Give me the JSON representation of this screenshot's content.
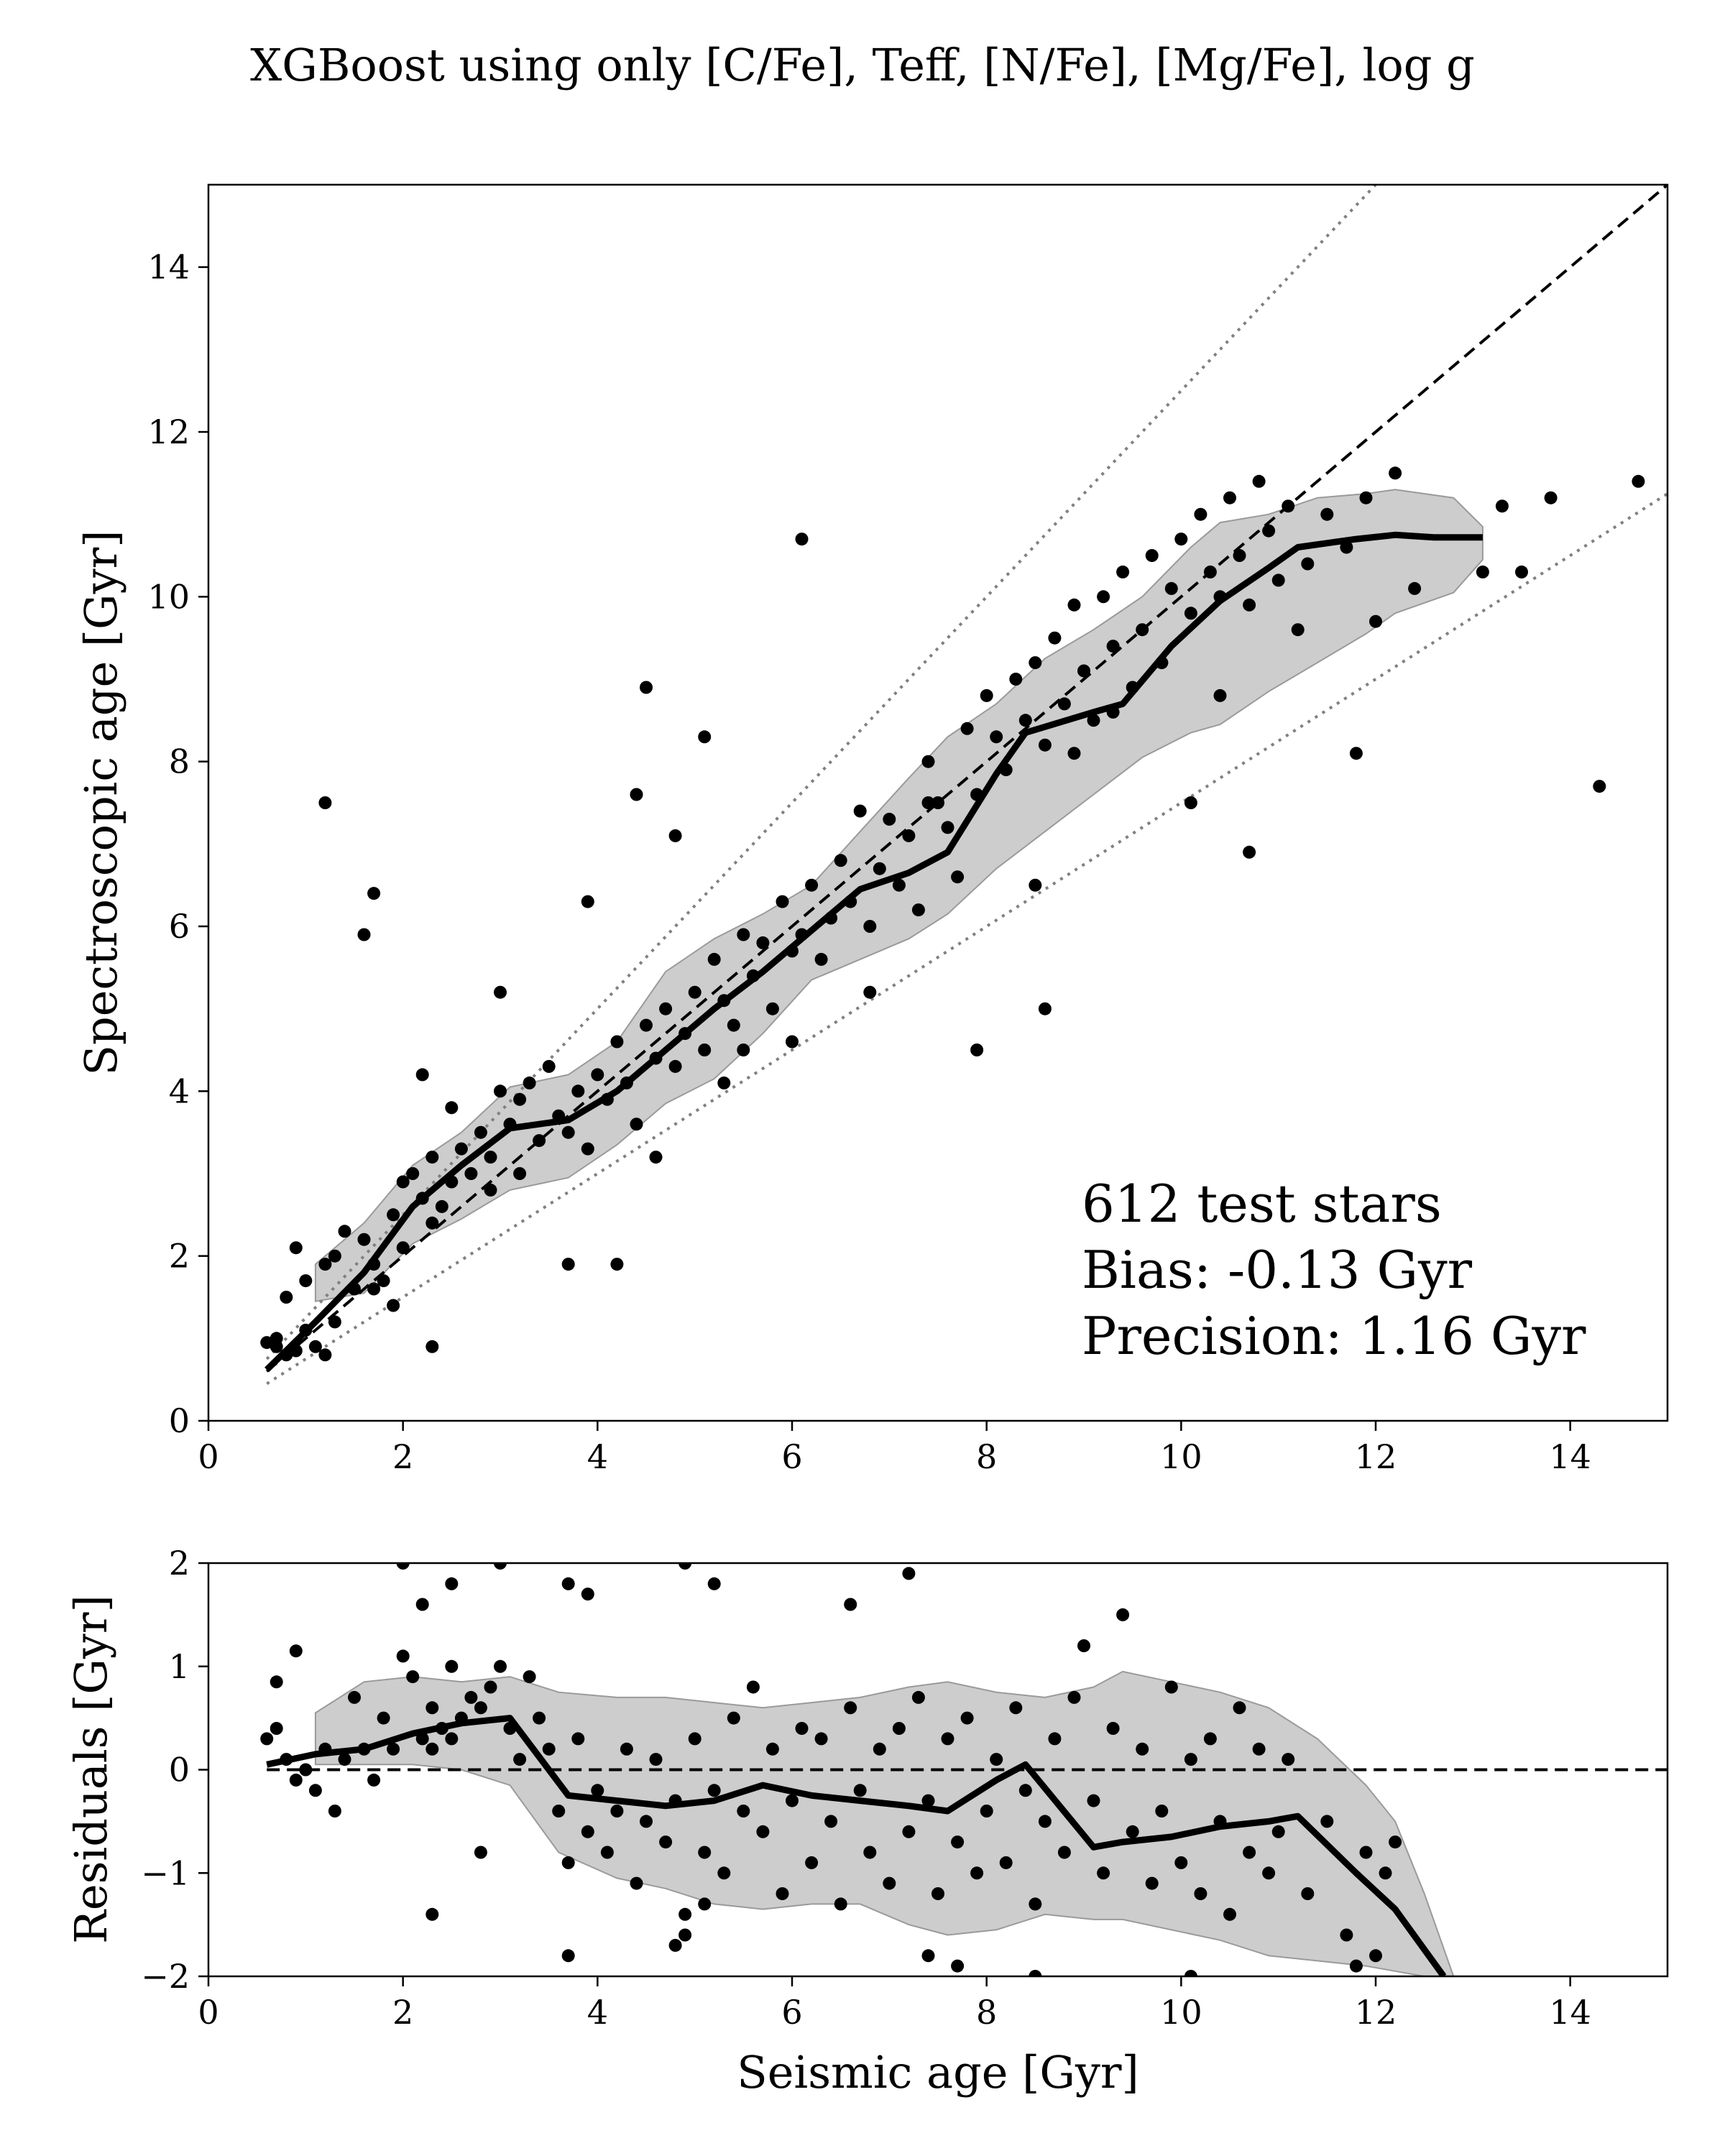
{
  "figure": {
    "title": "XGBoost using only [C/Fe], Teff, [N/Fe], [Mg/Fe], log g"
  },
  "chart_data": [
    {
      "type": "scatter",
      "panel": "main",
      "xlabel": "",
      "ylabel": "Spectroscopic age [Gyr]",
      "xlim": [
        0,
        15
      ],
      "ylim": [
        0,
        15
      ],
      "xticks": [
        "0",
        "2",
        "4",
        "6",
        "8",
        "10",
        "12",
        "14"
      ],
      "yticks": [
        "0",
        "2",
        "4",
        "6",
        "8",
        "10",
        "12",
        "14"
      ],
      "annotations": [
        "612 test stars",
        "Bias: -0.13 Gyr",
        "Precision: 1.16 Gyr"
      ],
      "reference_lines": {
        "one_to_one": {
          "style": "dashed",
          "slope": 1.0
        },
        "upper_bound": {
          "style": "dotted",
          "slope": 1.25
        },
        "lower_bound": {
          "style": "dotted",
          "slope": 0.75
        }
      },
      "running_median": {
        "x": [
          0.6,
          1.1,
          1.6,
          2.1,
          2.6,
          3.1,
          3.7,
          4.2,
          4.7,
          5.2,
          5.7,
          6.2,
          6.7,
          7.2,
          7.6,
          8.1,
          8.4,
          9.1,
          9.4,
          9.9,
          10.4,
          10.9,
          11.2,
          11.8,
          12.2,
          12.6,
          13.1
        ],
        "y": [
          0.62,
          1.2,
          1.8,
          2.6,
          3.1,
          3.55,
          3.65,
          4.0,
          4.5,
          5.0,
          5.45,
          5.95,
          6.45,
          6.65,
          6.9,
          7.85,
          8.35,
          8.6,
          8.7,
          9.4,
          9.95,
          10.35,
          10.6,
          10.7,
          10.75,
          10.72,
          10.72
        ]
      },
      "scatter_band": {
        "x": [
          1.1,
          1.6,
          2.1,
          2.6,
          3.1,
          3.7,
          4.2,
          4.7,
          5.2,
          5.7,
          6.2,
          6.7,
          7.2,
          7.6,
          8.1,
          8.6,
          9.1,
          9.6,
          10.1,
          10.4,
          10.9,
          11.4,
          11.9,
          12.2,
          12.8,
          13.1
        ],
        "upper": [
          1.9,
          2.4,
          3.1,
          3.5,
          4.05,
          4.2,
          4.6,
          5.45,
          5.85,
          6.15,
          6.5,
          7.15,
          7.8,
          8.3,
          8.7,
          9.25,
          9.6,
          10.0,
          10.6,
          10.9,
          11.0,
          11.2,
          11.25,
          11.3,
          11.2,
          10.85
        ],
        "lower": [
          1.45,
          1.55,
          2.15,
          2.45,
          2.8,
          2.95,
          3.35,
          3.85,
          4.15,
          4.7,
          5.35,
          5.6,
          5.85,
          6.15,
          6.7,
          7.15,
          7.6,
          8.05,
          8.35,
          8.45,
          8.85,
          9.2,
          9.55,
          9.8,
          10.05,
          10.45
        ]
      },
      "series": [
        {
          "x": [
            0.7,
            0.8,
            0.9,
            0.7,
            0.6,
            1.0,
            0.9,
            1.1,
            0.8,
            1.2,
            1.3,
            1.0,
            1.2,
            1.4,
            1.5,
            1.3,
            1.6,
            1.7,
            1.8,
            1.9,
            2.0,
            1.7,
            1.9,
            2.1,
            2.2,
            2.0,
            2.3,
            2.4,
            2.5,
            2.3,
            2.6,
            2.7,
            2.5,
            2.8,
            2.9,
            3.0,
            3.1,
            2.9,
            3.2,
            3.3,
            3.4,
            3.2,
            3.5,
            3.6,
            3.7,
            3.8,
            3.9,
            4.0,
            4.1,
            4.2,
            4.3,
            4.4,
            4.5,
            4.6,
            4.7,
            4.8,
            4.9,
            5.0,
            5.1,
            5.2,
            5.3,
            5.4,
            5.5,
            5.6,
            5.7,
            5.8,
            5.9,
            6.0,
            6.1,
            6.2,
            6.3,
            6.4,
            6.5,
            6.6,
            6.7,
            6.8,
            6.9,
            7.0,
            7.1,
            7.2,
            7.3,
            7.4,
            7.5,
            7.6,
            7.7,
            7.8,
            7.9,
            8.0,
            8.1,
            8.2,
            8.3,
            8.4,
            8.5,
            8.6,
            8.7,
            8.8,
            8.9,
            9.0,
            9.1,
            9.2,
            9.3,
            9.4,
            9.5,
            9.6,
            9.7,
            9.8,
            9.9,
            10.0,
            10.1,
            10.2,
            10.3,
            10.4,
            10.5,
            10.6,
            10.7,
            10.8,
            10.9,
            11.0,
            11.1,
            11.2,
            11.3,
            11.5,
            11.7,
            11.9,
            12.0,
            12.2,
            12.4,
            13.1,
            13.3,
            13.5,
            13.8,
            14.3,
            14.7,
            1.2,
            1.6,
            1.7,
            2.3,
            3.7,
            4.2,
            4.5,
            6.1,
            7.9,
            8.6,
            4.4,
            3.9,
            4.8,
            5.1,
            2.2,
            3.0,
            4.6,
            5.3,
            6.0,
            5.5,
            6.8,
            7.4,
            8.5,
            9.3,
            10.1,
            9.8,
            8.9,
            10.4,
            11.8,
            10.7
          ],
          "y": [
            0.9,
            0.8,
            0.85,
            1.0,
            0.95,
            1.1,
            2.1,
            0.9,
            1.5,
            1.9,
            1.2,
            1.7,
            0.8,
            2.3,
            1.6,
            2.0,
            2.2,
            1.9,
            1.7,
            2.5,
            2.9,
            1.6,
            1.4,
            3.0,
            2.7,
            2.1,
            3.2,
            2.6,
            2.9,
            2.4,
            3.3,
            3.0,
            3.8,
            3.5,
            2.8,
            4.0,
            3.6,
            3.2,
            3.9,
            4.1,
            3.4,
            3.0,
            4.3,
            3.7,
            3.5,
            4.0,
            3.3,
            4.2,
            3.9,
            4.6,
            4.1,
            3.6,
            4.8,
            4.4,
            5.0,
            4.3,
            4.7,
            5.2,
            4.5,
            5.6,
            5.1,
            4.8,
            5.9,
            5.4,
            5.8,
            5.0,
            6.3,
            5.7,
            5.9,
            6.5,
            5.6,
            6.1,
            6.8,
            6.3,
            7.4,
            6.0,
            6.7,
            7.3,
            6.5,
            7.1,
            6.2,
            8.0,
            7.5,
            7.2,
            6.6,
            8.4,
            7.6,
            8.8,
            8.3,
            7.9,
            9.0,
            8.5,
            9.2,
            8.2,
            9.5,
            8.7,
            9.9,
            9.1,
            8.5,
            10.0,
            9.4,
            10.3,
            8.9,
            9.6,
            10.5,
            9.2,
            10.1,
            10.7,
            9.8,
            11.0,
            10.3,
            10.0,
            11.2,
            10.5,
            9.9,
            11.4,
            10.8,
            10.2,
            11.1,
            9.6,
            10.4,
            11.0,
            10.6,
            11.2,
            9.7,
            11.5,
            10.1,
            10.3,
            11.1,
            10.3,
            11.2,
            7.7,
            11.4,
            7.5,
            5.9,
            6.4,
            0.9,
            1.9,
            1.9,
            8.9,
            10.7,
            4.5,
            5.0,
            7.6,
            6.3,
            7.1,
            8.3,
            4.2,
            5.2,
            3.2,
            4.1,
            4.6,
            4.5,
            5.2,
            7.5,
            6.5,
            8.6,
            7.5,
            9.2,
            8.1,
            8.8,
            8.1,
            6.9
          ]
        }
      ]
    },
    {
      "type": "scatter",
      "panel": "residuals",
      "xlabel": "Seismic age [Gyr]",
      "ylabel": "Residuals [Gyr]",
      "xlim": [
        0,
        15
      ],
      "ylim": [
        -2,
        2
      ],
      "xticks": [
        "0",
        "2",
        "4",
        "6",
        "8",
        "10",
        "12",
        "14"
      ],
      "yticks": [
        "−2",
        "−1",
        "0",
        "1",
        "2"
      ],
      "reference_lines": {
        "zero": {
          "style": "dashed",
          "y": 0
        }
      },
      "running_median": {
        "x": [
          0.6,
          1.1,
          1.6,
          2.1,
          2.6,
          3.1,
          3.7,
          4.2,
          4.7,
          5.2,
          5.7,
          6.2,
          6.7,
          7.2,
          7.6,
          8.1,
          8.4,
          9.1,
          9.4,
          9.9,
          10.4,
          10.9,
          11.2,
          11.8,
          12.2,
          12.7
        ],
        "y": [
          0.05,
          0.15,
          0.2,
          0.35,
          0.45,
          0.5,
          -0.25,
          -0.3,
          -0.35,
          -0.3,
          -0.15,
          -0.25,
          -0.3,
          -0.35,
          -0.4,
          -0.1,
          0.05,
          -0.75,
          -0.7,
          -0.65,
          -0.55,
          -0.5,
          -0.45,
          -1.0,
          -1.35,
          -2.0
        ]
      },
      "scatter_band": {
        "x": [
          1.1,
          1.6,
          2.1,
          2.6,
          3.1,
          3.6,
          4.2,
          4.7,
          5.2,
          5.7,
          6.2,
          6.7,
          7.2,
          7.6,
          8.1,
          8.6,
          9.1,
          9.4,
          9.9,
          10.4,
          10.9,
          11.4,
          11.9,
          12.2,
          12.5,
          12.8
        ],
        "upper": [
          0.55,
          0.85,
          0.9,
          0.85,
          0.9,
          0.75,
          0.7,
          0.7,
          0.65,
          0.6,
          0.65,
          0.7,
          0.8,
          0.85,
          0.75,
          0.7,
          0.8,
          0.95,
          0.85,
          0.75,
          0.6,
          0.3,
          -0.15,
          -0.5,
          -1.2,
          -2.0
        ],
        "lower": [
          0.05,
          0.05,
          0.05,
          0.0,
          -0.15,
          -0.8,
          -1.05,
          -1.15,
          -1.3,
          -1.35,
          -1.3,
          -1.3,
          -1.5,
          -1.6,
          -1.55,
          -1.4,
          -1.45,
          -1.45,
          -1.55,
          -1.65,
          -1.8,
          -1.85,
          -1.9,
          -1.95,
          -2.0,
          -2.0
        ]
      },
      "series": [
        {
          "x": [
            0.6,
            0.7,
            0.8,
            0.9,
            1.0,
            0.7,
            0.9,
            1.1,
            1.2,
            1.3,
            1.4,
            1.5,
            1.6,
            1.7,
            1.8,
            1.9,
            2.0,
            2.1,
            2.2,
            2.3,
            2.4,
            2.5,
            2.6,
            2.3,
            2.5,
            2.7,
            2.8,
            2.9,
            3.0,
            3.1,
            3.2,
            3.3,
            3.4,
            3.5,
            3.6,
            3.7,
            3.8,
            3.9,
            4.0,
            4.1,
            4.2,
            4.3,
            4.4,
            4.5,
            4.6,
            4.7,
            4.8,
            4.9,
            5.0,
            5.1,
            5.2,
            5.3,
            5.4,
            5.5,
            5.6,
            5.7,
            5.8,
            5.9,
            6.0,
            6.1,
            6.2,
            6.3,
            6.4,
            6.5,
            6.6,
            6.7,
            6.8,
            6.9,
            7.0,
            7.1,
            7.2,
            7.3,
            7.4,
            7.5,
            7.6,
            7.7,
            7.8,
            7.9,
            8.0,
            8.1,
            8.2,
            8.3,
            8.4,
            8.5,
            8.6,
            8.7,
            8.8,
            8.9,
            9.0,
            9.1,
            9.2,
            9.3,
            9.4,
            9.5,
            9.6,
            9.7,
            9.8,
            9.9,
            10.0,
            10.1,
            10.2,
            10.3,
            10.4,
            10.5,
            10.6,
            10.7,
            10.8,
            10.9,
            11.0,
            11.1,
            11.3,
            11.5,
            11.7,
            11.9,
            12.1,
            12.2,
            2.0,
            2.2,
            2.5,
            3.0,
            3.7,
            3.9,
            4.9,
            5.2,
            6.6,
            7.2,
            2.3,
            2.8,
            3.7,
            4.8,
            4.9,
            5.1,
            7.4,
            7.7,
            8.5,
            10.1,
            11.8,
            12.0
          ],
          "y": [
            0.3,
            0.4,
            0.1,
            -0.1,
            0.0,
            0.85,
            1.15,
            -0.2,
            0.2,
            -0.4,
            0.1,
            0.7,
            0.2,
            -0.1,
            0.5,
            0.2,
            1.1,
            0.9,
            0.3,
            0.6,
            0.4,
            1.0,
            0.5,
            0.2,
            0.3,
            0.7,
            0.6,
            0.8,
            1.0,
            0.4,
            0.1,
            0.9,
            0.5,
            0.2,
            -0.4,
            -0.9,
            0.3,
            -0.6,
            -0.2,
            -0.8,
            -0.4,
            0.2,
            -1.1,
            -0.5,
            0.1,
            -0.7,
            -0.3,
            -1.4,
            0.3,
            -0.8,
            -0.2,
            -1.0,
            0.5,
            -0.4,
            0.8,
            -0.6,
            0.2,
            -1.2,
            -0.3,
            0.4,
            -0.9,
            0.3,
            -0.5,
            -1.3,
            0.6,
            -0.2,
            -0.8,
            0.2,
            -1.1,
            0.4,
            -0.6,
            0.7,
            -0.3,
            -1.2,
            0.3,
            -0.7,
            0.5,
            -1.0,
            -0.4,
            0.1,
            -0.9,
            0.6,
            -0.2,
            -1.3,
            -0.5,
            0.3,
            -0.8,
            0.7,
            1.2,
            -0.3,
            -1.0,
            0.4,
            1.5,
            -0.6,
            0.2,
            -1.1,
            -0.4,
            0.8,
            -0.9,
            0.1,
            -1.2,
            0.3,
            -0.5,
            -1.4,
            0.6,
            -0.8,
            0.2,
            -1.0,
            -0.6,
            0.1,
            -1.2,
            -0.5,
            -1.6,
            -0.8,
            -1.0,
            -0.7,
            2.0,
            1.6,
            1.8,
            2.0,
            1.8,
            1.7,
            2.0,
            1.8,
            1.6,
            1.9,
            -1.4,
            -0.8,
            -1.8,
            -1.7,
            -1.6,
            -1.3,
            -1.8,
            -1.9,
            -2.0,
            -2.0,
            -1.9,
            -1.8
          ]
        }
      ]
    }
  ]
}
